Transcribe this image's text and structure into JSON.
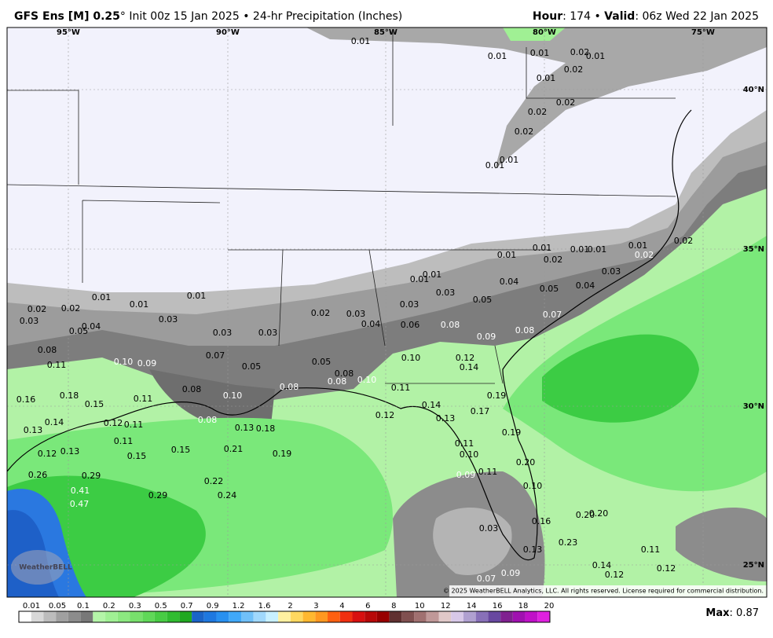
{
  "header": {
    "title": "GFS Ens [M] 0.25",
    "degree": "°",
    "init": "Init 00z 15 Jan 2025",
    "bullet": "•",
    "product": "24-hr Precipitation (Inches)",
    "hour_label": "Hour",
    "hour_value": ": 174 •",
    "valid_label": "Valid",
    "valid_value": ": 06z Wed 22 Jan 2025"
  },
  "map": {
    "lon_labels": [
      "95°W",
      "90°W",
      "85°W",
      "80°W",
      "75°W"
    ],
    "lat_labels": [
      "40°N",
      "35°N",
      "30°N",
      "25°N"
    ],
    "value_labels": [
      "0.01",
      "0.01",
      "0.01",
      "0.02",
      "0.01",
      "0.01",
      "0.02",
      "0.02",
      "0.02",
      "0.02",
      "0.01",
      "0.01",
      "0.01",
      "0.01",
      "0.01",
      "0.01",
      "0.02",
      "0.01",
      "0.02",
      "0.02",
      "0.03",
      "0.04",
      "0.04",
      "0.05",
      "0.05",
      "0.01",
      "0.01",
      "0.03",
      "0.03",
      "0.02",
      "0.03",
      "0.04",
      "0.06",
      "0.08",
      "0.09",
      "0.08",
      "0.07",
      "0.01",
      "0.01",
      "0.01",
      "0.02",
      "0.02",
      "0.03",
      "0.05",
      "0.04",
      "0.03",
      "0.03",
      "0.03",
      "0.08",
      "0.11",
      "0.10",
      "0.09",
      "0.07",
      "0.05",
      "0.05",
      "0.08",
      "0.08",
      "0.10",
      "0.08",
      "0.08",
      "0.10",
      "0.10",
      "0.12",
      "0.14",
      "0.11",
      "0.19",
      "0.18",
      "0.16",
      "0.15",
      "0.11",
      "0.14",
      "0.17",
      "0.13",
      "0.12",
      "0.08",
      "0.13",
      "0.18",
      "0.13",
      "0.14",
      "0.12",
      "0.11",
      "0.11",
      "0.19",
      "0.11",
      "0.10",
      "0.20",
      "0.12",
      "0.13",
      "0.15",
      "0.15",
      "0.21",
      "0.19",
      "0.09",
      "0.11",
      "0.26",
      "0.29",
      "0.22",
      "0.10",
      "0.41",
      "0.29",
      "0.24",
      "0.47",
      "0.20",
      "0.20",
      "0.16",
      "0.03",
      "0.23",
      "0.13",
      "0.11",
      "0.14",
      "0.12",
      "0.12",
      "0.07",
      "0.09"
    ],
    "logo": "WeatherBELL",
    "copyright": "© 2025 WeatherBELL Analytics, LLC. All rights reserved. License required for commercial distribution."
  },
  "colorbar": {
    "labels": [
      "0.01",
      "0.05",
      "0.1",
      "0.2",
      "0.3",
      "0.5",
      "0.7",
      "0.9",
      "1.2",
      "1.6",
      "2",
      "3",
      "4",
      "6",
      "8",
      "10",
      "12",
      "14",
      "16",
      "18",
      "20"
    ],
    "colors": [
      "#ffffff",
      "#d8d8d8",
      "#bcbcbc",
      "#a0a0a0",
      "#8c8c8c",
      "#787878",
      "#b4f5a8",
      "#a0f094",
      "#8ce880",
      "#78e06c",
      "#60d858",
      "#48cc44",
      "#30bc30",
      "#20a820",
      "#1a64c8",
      "#1e78e0",
      "#2890f0",
      "#40a8f8",
      "#70c0f8",
      "#a0d8fc",
      "#c8f0ff",
      "#fff0a0",
      "#ffd860",
      "#ffb830",
      "#ff9820",
      "#ff6010",
      "#f03010",
      "#d81010",
      "#b80808",
      "#980000",
      "#603030",
      "#805050",
      "#a07070",
      "#c09898",
      "#e0c8c8",
      "#d8c8e8",
      "#b0a0d0",
      "#8870b8",
      "#6848a0",
      "#802090",
      "#a010b0",
      "#c010c8",
      "#e020e0"
    ]
  },
  "max": {
    "label": "Max",
    "value": ": 0.87"
  }
}
